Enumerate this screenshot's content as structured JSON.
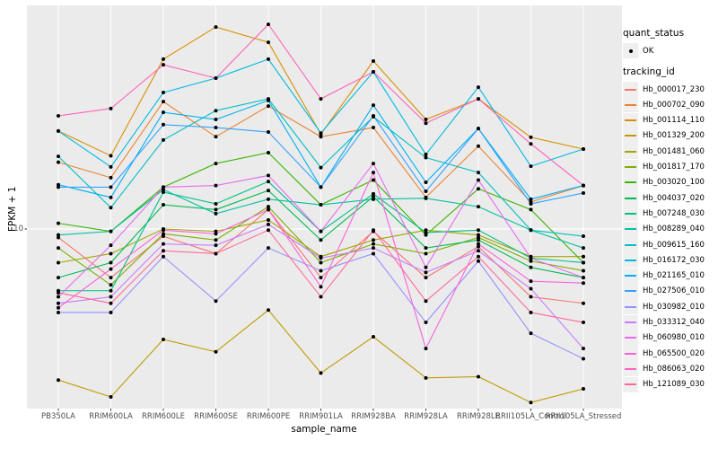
{
  "page": {
    "background": "#ffffff",
    "panel_background": "#ebebeb",
    "gridline_color": "#ffffff",
    "tick_text_color": "#4d4d4d",
    "point_color": "#000000"
  },
  "legend": {
    "quant_status_title": "quant_status",
    "quant_status_items": [
      {
        "label": "OK",
        "symbol": "point"
      }
    ],
    "tracking_id_title": "tracking_id"
  },
  "chart_data": {
    "type": "line",
    "title": "",
    "xlabel": "sample_name",
    "ylabel": "FPKM + 1",
    "y_scale": "log10",
    "y_ticks": [
      {
        "value": 10,
        "label": "10"
      }
    ],
    "grid": true,
    "legend_position": "right",
    "categories": [
      "PB350LA",
      "RRIM600LA",
      "RRIM600LE",
      "RRIM600SE",
      "RRIM600PE",
      "RRIM901LA",
      "RRIM928BA",
      "RRIM928LA",
      "RRIM928LE",
      "RRII105LA_Control",
      "RRII105LA_Stressed"
    ],
    "quant_status_value": "OK",
    "series": [
      {
        "name": "Hb_000017_230",
        "color": "#F8766D",
        "values": [
          9.3,
          6.6,
          9.4,
          8.1,
          11.8,
          6.6,
          9.8,
          6.6,
          8.6,
          5.6,
          5.3
        ]
      },
      {
        "name": "Hb_000702_090",
        "color": "#EA8331",
        "values": [
          17.7,
          15.5,
          29.7,
          22.0,
          28.6,
          22.0,
          23.8,
          13.1,
          20.3,
          12.6,
          14.5
        ]
      },
      {
        "name": "Hb_001114_110",
        "color": "#D89000",
        "values": [
          23.1,
          18.7,
          42.7,
          56.2,
          49.3,
          22.5,
          42.0,
          25.5,
          30.4,
          21.9,
          19.8
        ]
      },
      {
        "name": "Hb_001329_200",
        "color": "#C09B00",
        "values": [
          2.75,
          2.38,
          3.89,
          3.5,
          5.0,
          2.92,
          3.98,
          2.8,
          2.83,
          2.27,
          2.55
        ]
      },
      {
        "name": "Hb_001481_060",
        "color": "#A3A500",
        "values": [
          7.5,
          8.1,
          10.0,
          9.8,
          10.8,
          7.9,
          9.1,
          9.9,
          9.5,
          7.9,
          7.9
        ]
      },
      {
        "name": "Hb_001817_170",
        "color": "#7CAE00",
        "values": [
          8.5,
          6.2,
          9.6,
          9.1,
          12.1,
          7.5,
          8.8,
          8.1,
          9.3,
          7.6,
          7.0
        ]
      },
      {
        "name": "Hb_003020_100",
        "color": "#39B600",
        "values": [
          10.5,
          9.8,
          14.3,
          17.5,
          19.2,
          12.3,
          15.2,
          9.5,
          14.1,
          11.8,
          7.5
        ]
      },
      {
        "name": "Hb_004037_020",
        "color": "#00BB4E",
        "values": [
          6.6,
          7.5,
          12.3,
          11.8,
          13.9,
          9.1,
          13.2,
          8.5,
          9.1,
          7.2,
          6.6
        ]
      },
      {
        "name": "Hb_007248_030",
        "color": "#00C087",
        "values": [
          5.9,
          5.9,
          13.7,
          12.4,
          15.0,
          9.8,
          13.5,
          9.7,
          9.9,
          7.8,
          7.5
        ]
      },
      {
        "name": "Hb_008289_040",
        "color": "#00C1A3",
        "values": [
          9.5,
          9.8,
          14.0,
          11.4,
          12.9,
          12.3,
          12.9,
          13.0,
          12.1,
          9.9,
          8.5
        ]
      },
      {
        "name": "Hb_009615_160",
        "color": "#00BFC4",
        "values": [
          18.6,
          12.0,
          21.4,
          27.5,
          30.4,
          16.9,
          26.1,
          18.4,
          16.2,
          9.9,
          9.4
        ]
      },
      {
        "name": "Hb_016172_030",
        "color": "#00BAE0",
        "values": [
          23.1,
          17.0,
          32.1,
          36.3,
          42.7,
          22.7,
          38.3,
          18.9,
          33.6,
          17.1,
          19.8
        ]
      },
      {
        "name": "Hb_021165_010",
        "color": "#00B0F6",
        "values": [
          14.6,
          13.1,
          27.1,
          25.5,
          30.0,
          14.3,
          28.8,
          14.9,
          23.6,
          12.9,
          14.5
        ]
      },
      {
        "name": "Hb_027506_010",
        "color": "#35A2FF",
        "values": [
          14.3,
          14.3,
          24.4,
          23.8,
          22.9,
          14.3,
          26.3,
          13.8,
          23.6,
          12.4,
          13.6
        ]
      },
      {
        "name": "Hb_030982_010",
        "color": "#9590FF",
        "values": [
          4.9,
          4.9,
          7.9,
          5.4,
          8.5,
          7.0,
          8.1,
          4.5,
          7.6,
          4.1,
          3.3
        ]
      },
      {
        "name": "Hb_033312_040",
        "color": "#C77CFF",
        "values": [
          5.3,
          5.6,
          8.8,
          8.7,
          10.4,
          7.8,
          8.5,
          6.9,
          8.3,
          6.0,
          3.6
        ]
      },
      {
        "name": "Hb_060980_010",
        "color": "#E76BF3",
        "values": [
          5.6,
          8.7,
          14.3,
          14.5,
          15.8,
          9.8,
          17.5,
          7.2,
          15.2,
          7.8,
          6.6
        ]
      },
      {
        "name": "Hb_065500_020",
        "color": "#FA62DB",
        "values": [
          5.1,
          7.1,
          9.9,
          9.6,
          11.8,
          6.1,
          16.2,
          3.6,
          8.8,
          6.4,
          6.3
        ]
      },
      {
        "name": "Hb_086063_020",
        "color": "#FF62BC",
        "values": [
          26.3,
          28.0,
          40.7,
          36.3,
          57.5,
          30.4,
          38.3,
          24.7,
          30.4,
          20.7,
          14.5
        ]
      },
      {
        "name": "Hb_121089_030",
        "color": "#FF6A98",
        "values": [
          5.8,
          5.3,
          8.3,
          8.1,
          9.9,
          5.6,
          9.9,
          5.4,
          7.9,
          4.9,
          4.5
        ]
      }
    ]
  }
}
